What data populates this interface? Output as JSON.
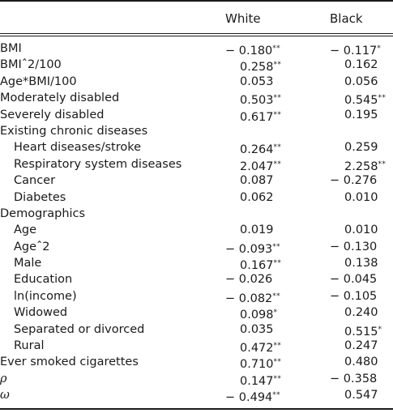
{
  "header": {
    "col1": "White",
    "col2": "Black"
  },
  "rows": [
    {
      "label": "BMI",
      "indent": false,
      "white": "− 0.180",
      "white_sig": "**",
      "black": "− 0.117",
      "black_sig": "*"
    },
    {
      "label": "BMIˆ2/100",
      "indent": false,
      "white": "0.258",
      "white_sig": "**",
      "black": "0.162",
      "black_sig": ""
    },
    {
      "label": "Age*BMI/100",
      "indent": false,
      "white": "0.053",
      "white_sig": "",
      "black": "0.056",
      "black_sig": ""
    },
    {
      "label": "Moderately disabled",
      "indent": false,
      "white": "0.503",
      "white_sig": "**",
      "black": "0.545",
      "black_sig": "**"
    },
    {
      "label": "Severely disabled",
      "indent": false,
      "white": "0.617",
      "white_sig": "**",
      "black": "0.195",
      "black_sig": ""
    },
    {
      "label": "Existing chronic diseases",
      "indent": false,
      "white": "",
      "white_sig": "",
      "black": "",
      "black_sig": ""
    },
    {
      "label": "Heart diseases/stroke",
      "indent": true,
      "white": "0.264",
      "white_sig": "**",
      "black": "0.259",
      "black_sig": ""
    },
    {
      "label": "Respiratory system diseases",
      "indent": true,
      "white": "2.047",
      "white_sig": "**",
      "black": "2.258",
      "black_sig": "**"
    },
    {
      "label": "Cancer",
      "indent": true,
      "white": "0.087",
      "white_sig": "",
      "black": "− 0.276",
      "black_sig": ""
    },
    {
      "label": "Diabetes",
      "indent": true,
      "white": "0.062",
      "white_sig": "",
      "black": "0.010",
      "black_sig": ""
    },
    {
      "label": "Demographics",
      "indent": false,
      "white": "",
      "white_sig": "",
      "black": "",
      "black_sig": ""
    },
    {
      "label": "Age",
      "indent": true,
      "white": "0.019",
      "white_sig": "",
      "black": "0.010",
      "black_sig": ""
    },
    {
      "label": "Ageˆ2",
      "indent": true,
      "white": "− 0.093",
      "white_sig": "**",
      "black": "− 0.130",
      "black_sig": ""
    },
    {
      "label": "Male",
      "indent": true,
      "white": "0.167",
      "white_sig": "**",
      "black": "0.138",
      "black_sig": ""
    },
    {
      "label": "Education",
      "indent": true,
      "white": "− 0.026",
      "white_sig": "",
      "black": "− 0.045",
      "black_sig": ""
    },
    {
      "label": "ln(income)",
      "indent": true,
      "white": "− 0.082",
      "white_sig": "**",
      "black": "− 0.105",
      "black_sig": ""
    },
    {
      "label": "Widowed",
      "indent": true,
      "white": "0.098",
      "white_sig": "*",
      "black": "0.240",
      "black_sig": ""
    },
    {
      "label": "Separated or divorced",
      "indent": true,
      "white": "0.035",
      "white_sig": "",
      "black": "0.515",
      "black_sig": "*"
    },
    {
      "label": "Rural",
      "indent": true,
      "white": "0.472",
      "white_sig": "**",
      "black": "0.247",
      "black_sig": ""
    },
    {
      "label": "Ever smoked cigarettes",
      "indent": false,
      "white": "0.710",
      "white_sig": "**",
      "black": "0.480",
      "black_sig": ""
    },
    {
      "label": "ρ",
      "indent": false,
      "greek": true,
      "white": "0.147",
      "white_sig": "**",
      "black": "− 0.358",
      "black_sig": ""
    },
    {
      "label": "ω",
      "indent": false,
      "greek": true,
      "white": "− 0.494",
      "white_sig": "**",
      "black": "0.547",
      "black_sig": ""
    }
  ]
}
